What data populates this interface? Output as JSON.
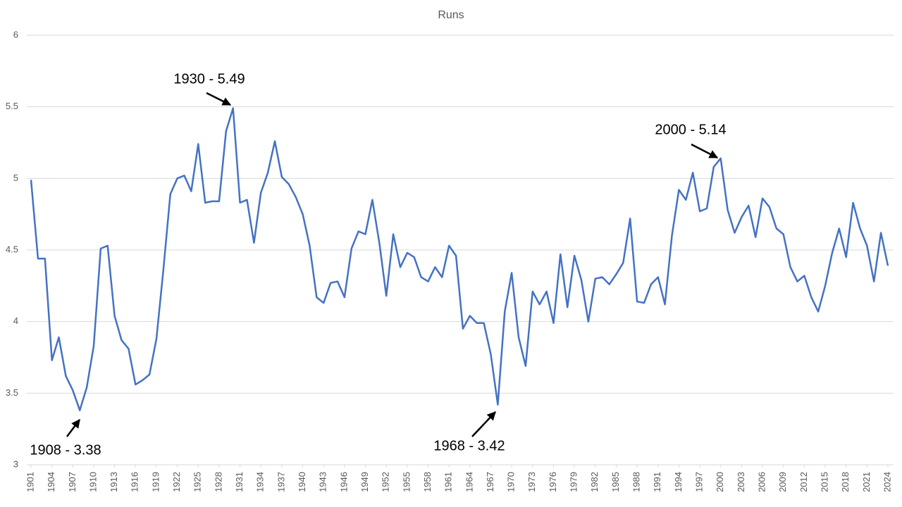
{
  "chart_data": {
    "type": "line",
    "title": "Runs",
    "x": [
      1901,
      1902,
      1903,
      1904,
      1905,
      1906,
      1907,
      1908,
      1909,
      1910,
      1911,
      1912,
      1913,
      1914,
      1915,
      1916,
      1917,
      1918,
      1919,
      1920,
      1921,
      1922,
      1923,
      1924,
      1925,
      1926,
      1927,
      1928,
      1929,
      1930,
      1931,
      1932,
      1933,
      1934,
      1935,
      1936,
      1937,
      1938,
      1939,
      1940,
      1941,
      1942,
      1943,
      1944,
      1945,
      1946,
      1947,
      1948,
      1949,
      1950,
      1951,
      1952,
      1953,
      1954,
      1955,
      1956,
      1957,
      1958,
      1959,
      1960,
      1961,
      1962,
      1963,
      1964,
      1965,
      1966,
      1967,
      1968,
      1969,
      1970,
      1971,
      1972,
      1973,
      1974,
      1975,
      1976,
      1977,
      1978,
      1979,
      1980,
      1981,
      1982,
      1983,
      1984,
      1985,
      1986,
      1987,
      1988,
      1989,
      1990,
      1991,
      1992,
      1993,
      1994,
      1995,
      1996,
      1997,
      1998,
      1999,
      2000,
      2001,
      2002,
      2003,
      2004,
      2005,
      2006,
      2007,
      2008,
      2009,
      2010,
      2011,
      2012,
      2013,
      2014,
      2015,
      2016,
      2017,
      2018,
      2019,
      2020,
      2021,
      2022,
      2023,
      2024
    ],
    "values": [
      4.99,
      4.44,
      4.44,
      3.73,
      3.89,
      3.62,
      3.52,
      3.38,
      3.54,
      3.83,
      4.51,
      4.53,
      4.04,
      3.87,
      3.81,
      3.56,
      3.59,
      3.63,
      3.88,
      4.36,
      4.89,
      5.0,
      5.02,
      4.91,
      5.24,
      4.83,
      4.84,
      4.84,
      5.33,
      5.49,
      4.83,
      4.85,
      4.55,
      4.9,
      5.04,
      5.26,
      5.01,
      4.96,
      4.87,
      4.75,
      4.53,
      4.17,
      4.13,
      4.27,
      4.28,
      4.17,
      4.51,
      4.63,
      4.61,
      4.85,
      4.55,
      4.18,
      4.61,
      4.38,
      4.48,
      4.45,
      4.31,
      4.28,
      4.38,
      4.31,
      4.53,
      4.46,
      3.95,
      4.04,
      3.99,
      3.99,
      3.77,
      3.42,
      4.07,
      4.34,
      3.89,
      3.69,
      4.21,
      4.12,
      4.21,
      3.99,
      4.47,
      4.1,
      4.46,
      4.29,
      4.0,
      4.3,
      4.31,
      4.26,
      4.33,
      4.41,
      4.72,
      4.14,
      4.13,
      4.26,
      4.31,
      4.12,
      4.6,
      4.92,
      4.85,
      5.04,
      4.77,
      4.79,
      5.08,
      5.14,
      4.78,
      4.62,
      4.73,
      4.81,
      4.59,
      4.86,
      4.8,
      4.65,
      4.61,
      4.38,
      4.28,
      4.32,
      4.17,
      4.07,
      4.25,
      4.48,
      4.65,
      4.45,
      4.83,
      4.65,
      4.53,
      4.28,
      4.62,
      4.39
    ],
    "color": "#4472c4",
    "xlim": [
      1901,
      2024
    ],
    "xticks": [
      1901,
      1904,
      1907,
      1910,
      1913,
      1916,
      1919,
      1922,
      1925,
      1928,
      1931,
      1934,
      1937,
      1940,
      1943,
      1946,
      1949,
      1952,
      1955,
      1958,
      1961,
      1964,
      1967,
      1970,
      1973,
      1976,
      1979,
      1982,
      1985,
      1988,
      1991,
      1994,
      1997,
      2000,
      2003,
      2006,
      2009,
      2012,
      2015,
      2018,
      2021,
      2024
    ],
    "ylim": [
      3,
      6
    ],
    "yticks": [
      3,
      3.5,
      4,
      4.5,
      5,
      5.5,
      6
    ],
    "grid": true,
    "annotations": [
      "1908 - 3.38",
      "1930 - 5.49",
      "1968 - 3.42",
      "2000 - 5.14"
    ]
  }
}
